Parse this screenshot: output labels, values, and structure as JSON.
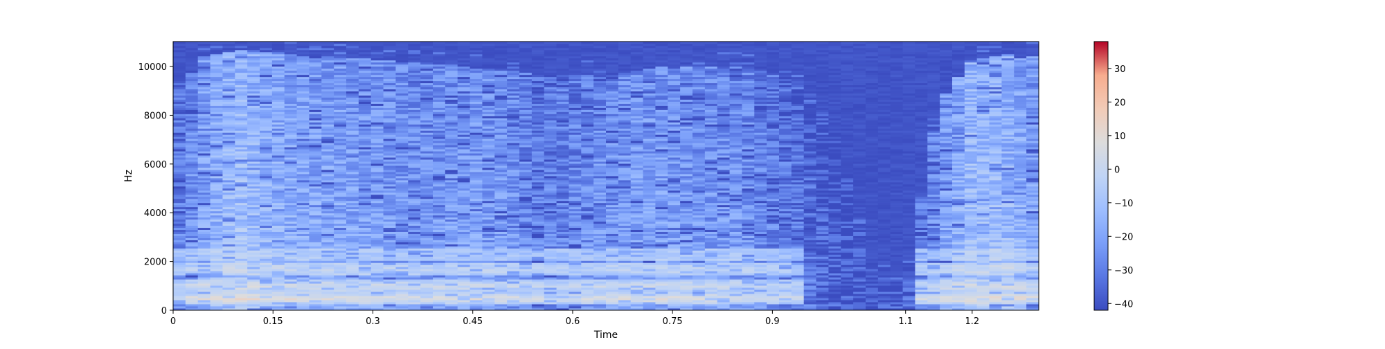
{
  "chart_data": {
    "type": "heatmap",
    "title": "",
    "xlabel": "Time",
    "ylabel": "Hz",
    "xlim": [
      0,
      1.3
    ],
    "ylim": [
      0,
      11025
    ],
    "x_ticks": [
      0,
      0.15,
      0.3,
      0.45,
      0.6,
      0.75,
      0.9,
      1.1,
      1.2
    ],
    "x_tick_labels": [
      "0",
      "0.15",
      "0.3",
      "0.45",
      "0.6",
      "0.75",
      "0.9",
      "1.1",
      "1.2"
    ],
    "y_ticks": [
      0,
      2000,
      4000,
      6000,
      8000,
      10000
    ],
    "y_tick_labels": [
      "0",
      "2000",
      "4000",
      "6000",
      "8000",
      "10000"
    ],
    "colormap": "coolwarm",
    "colorbar": {
      "range": [
        -42,
        38
      ],
      "ticks": [
        -40,
        -30,
        -20,
        -10,
        0,
        10,
        20,
        30
      ],
      "tick_labels": [
        "−40",
        "−30",
        "−20",
        "−10",
        "0",
        "10",
        "20",
        "30"
      ]
    },
    "grid": false,
    "legend": "none",
    "energy_profile": {
      "time": [
        0.0,
        0.05,
        0.1,
        0.15,
        0.2,
        0.25,
        0.3,
        0.35,
        0.4,
        0.45,
        0.5,
        0.55,
        0.6,
        0.65,
        0.7,
        0.75,
        0.8,
        0.85,
        0.9,
        0.95,
        1.0,
        1.05,
        1.1,
        1.15,
        1.2,
        1.25,
        1.3
      ],
      "max_hz": [
        9000,
        10500,
        10700,
        10600,
        10400,
        10400,
        10300,
        10200,
        10100,
        10000,
        9800,
        9700,
        9700,
        9600,
        9900,
        10000,
        10000,
        10000,
        9700,
        9300,
        7000,
        1400,
        1300,
        8500,
        10300,
        10500,
        10400
      ],
      "level_db": [
        -30,
        -14,
        -8,
        -12,
        -16,
        -16,
        -18,
        -20,
        -20,
        -18,
        -20,
        -26,
        -24,
        -20,
        -18,
        -18,
        -20,
        -20,
        -26,
        -30,
        -36,
        -38,
        -36,
        -20,
        -8,
        -10,
        -18
      ]
    },
    "formant_bands": [
      {
        "hz": 500,
        "level_db": 14
      },
      {
        "hz": 1000,
        "level_db": 8
      },
      {
        "hz": 1700,
        "level_db": 4
      },
      {
        "hz": 2300,
        "level_db": -2
      }
    ]
  }
}
